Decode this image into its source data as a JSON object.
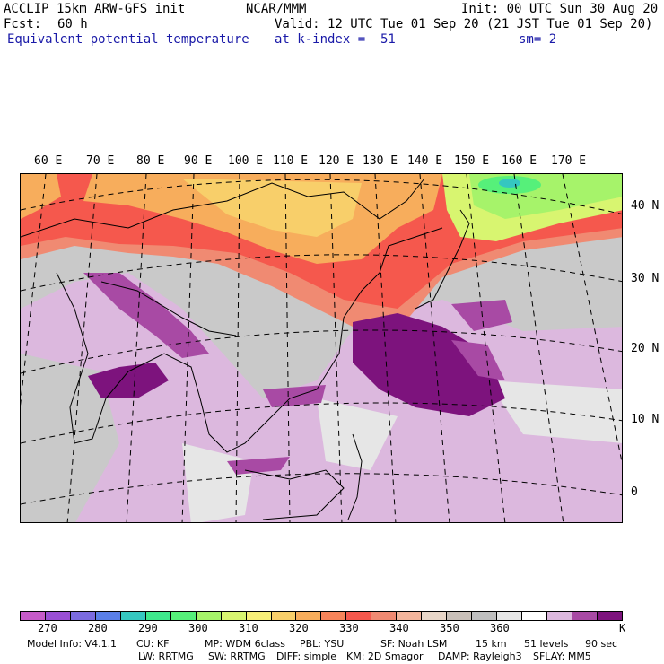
{
  "header": {
    "model": "ACCLIP 15km ARW-GFS init",
    "center": "NCAR/MMM",
    "init": "Init: 00 UTC Sun 30 Aug 20",
    "fcst_label": "Fcst:",
    "fcst_value": "60 h",
    "valid": "Valid: 12 UTC Tue 01 Sep 20 (21 JST Tue 01 Sep 20)",
    "field": "Equivalent potential temperature",
    "level": "at k-index =  51",
    "smooth": "sm= 2"
  },
  "lon_labels": [
    "60 E",
    "70 E",
    "80 E",
    "90 E",
    "100 E",
    "110 E",
    "120 E",
    "130 E",
    "140 E",
    "150 E",
    "160 E",
    "170 E"
  ],
  "lat_labels": [
    "40 N",
    "30 N",
    "20 N",
    "10 N",
    "0"
  ],
  "colorbar": {
    "colors": [
      "#c65bc9",
      "#9a4fd4",
      "#7b6be0",
      "#5a7fe8",
      "#35c7c0",
      "#3ee88c",
      "#56f07a",
      "#a6f36a",
      "#d8f570",
      "#f7ef78",
      "#f8cf6a",
      "#f7ad5c",
      "#f7845a",
      "#f5584d",
      "#f08a72",
      "#f3b59c",
      "#e8d6c8",
      "#c9c0b9",
      "#bfbfbf",
      "#e6e6e6",
      "#ffffff",
      "#dcb8de",
      "#a84aa4",
      "#7d137d"
    ],
    "tick_labels": [
      "270",
      "280",
      "290",
      "300",
      "310",
      "320",
      "330",
      "340",
      "350",
      "360"
    ],
    "unit": "K"
  },
  "footer": {
    "line1": [
      "Model Info: V4.1.1",
      "CU: KF",
      "MP: WDM 6class",
      "PBL: YSU",
      "SF: Noah LSM",
      "15 km",
      "51 levels",
      "90 sec"
    ],
    "line2": [
      "LW: RRTMG",
      "SW: RRTMG",
      "DIFF: simple",
      "KM: 2D Smagor",
      "DAMP: Rayleigh3",
      "SFLAY: MM5"
    ]
  }
}
